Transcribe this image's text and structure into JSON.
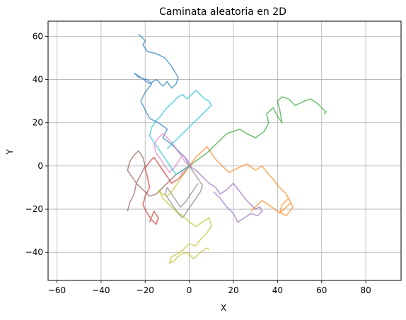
{
  "chart_data": {
    "type": "line",
    "title": "Caminata aleatoria en 2D",
    "xlabel": "X",
    "ylabel": "Y",
    "xlim": [
      -64,
      96
    ],
    "ylim": [
      -53,
      67
    ],
    "xticks": [
      -60,
      -40,
      -20,
      0,
      20,
      40,
      60,
      80
    ],
    "yticks": [
      -40,
      -20,
      0,
      20,
      40,
      60
    ],
    "grid": true,
    "series": [
      {
        "color": "#1f77b4",
        "x": [
          0,
          -2,
          -5,
          -8,
          -12,
          -10,
          -14,
          -18,
          -20,
          -22,
          -20,
          -17,
          -19,
          -23,
          -25,
          -22,
          -18,
          -15,
          -12,
          -10,
          -8,
          -6,
          -5,
          -8,
          -11,
          -15,
          -19,
          -21,
          -20,
          -22,
          -23
        ],
        "y": [
          0,
          4,
          7,
          10,
          13,
          17,
          20,
          22,
          26,
          30,
          34,
          38,
          40,
          41,
          43,
          41,
          38,
          40,
          37,
          39,
          36,
          38,
          41,
          46,
          50,
          52,
          53,
          56,
          58,
          60,
          61
        ]
      },
      {
        "color": "#ff7f0e",
        "x": [
          0,
          3,
          6,
          8,
          10,
          12,
          15,
          18,
          22,
          26,
          30,
          33,
          36,
          38,
          40,
          42,
          44,
          46,
          43,
          41,
          42,
          45,
          47,
          44,
          40,
          36,
          33,
          30,
          28
        ],
        "y": [
          0,
          4,
          7,
          9,
          6,
          3,
          0,
          -3,
          -1,
          1,
          -2,
          0,
          -4,
          -6,
          -9,
          -11,
          -13,
          -17,
          -20,
          -22,
          -18,
          -15,
          -19,
          -23,
          -21,
          -18,
          -16,
          -19,
          -21
        ]
      },
      {
        "color": "#2ca02c",
        "x": [
          0,
          4,
          8,
          11,
          14,
          17,
          20,
          23,
          26,
          30,
          34,
          36,
          35,
          38,
          40,
          42,
          41,
          40,
          42,
          45,
          48,
          52,
          55,
          58,
          60,
          62,
          61
        ],
        "y": [
          0,
          3,
          6,
          9,
          12,
          15,
          16,
          17,
          15,
          13,
          16,
          20,
          24,
          27,
          23,
          20,
          26,
          30,
          32,
          31,
          28,
          30,
          31,
          29,
          27,
          25,
          24
        ]
      },
      {
        "color": "#d62728",
        "x": [
          0,
          -2,
          -5,
          -8,
          -10,
          -12,
          -14,
          -16,
          -18,
          -20,
          -19,
          -18,
          -20,
          -21,
          -19,
          -17,
          -15,
          -14,
          -16,
          -18
        ],
        "y": [
          0,
          -3,
          -6,
          -8,
          -5,
          -2,
          1,
          4,
          2,
          -1,
          -5,
          -10,
          -14,
          -18,
          -22,
          -25,
          -27,
          -24,
          -21,
          -26
        ]
      },
      {
        "color": "#9467bd",
        "x": [
          0,
          3,
          6,
          9,
          12,
          14,
          17,
          20,
          23,
          26,
          28,
          30,
          32,
          33,
          31,
          28,
          25,
          22,
          20,
          17,
          14,
          11
        ],
        "y": [
          0,
          -2,
          -5,
          -8,
          -10,
          -13,
          -11,
          -8,
          -12,
          -16,
          -18,
          -20,
          -19,
          -21,
          -23,
          -22,
          -24,
          -26,
          -22,
          -19,
          -15,
          -12
        ]
      },
      {
        "color": "#8c564b",
        "x": [
          0,
          -3,
          -6,
          -9,
          -12,
          -15,
          -18,
          -20,
          -22,
          -24,
          -26,
          -28,
          -27,
          -25,
          -23,
          -21,
          -20,
          -22,
          -24,
          -25,
          -27,
          -28
        ],
        "y": [
          0,
          -2,
          -4,
          -7,
          -10,
          -13,
          -14,
          -12,
          -10,
          -8,
          -5,
          -2,
          2,
          5,
          7,
          4,
          0,
          -4,
          -8,
          -13,
          -17,
          -21
        ]
      },
      {
        "color": "#e377c2",
        "x": [
          0,
          -2,
          -4,
          -6,
          -8,
          -10,
          -12,
          -14,
          -16,
          -15,
          -13,
          -11,
          -9,
          -7,
          -5,
          -3,
          -1,
          1,
          -2,
          -4
        ],
        "y": [
          0,
          2,
          5,
          8,
          11,
          13,
          15,
          13,
          10,
          6,
          3,
          0,
          -3,
          -1,
          2,
          5,
          3,
          0,
          -2,
          -4
        ]
      },
      {
        "color": "#7f7f7f",
        "x": [
          0,
          2,
          4,
          6,
          5,
          3,
          1,
          -1,
          -3,
          -5,
          -7,
          -9,
          -11,
          -10,
          -8,
          -6,
          -4,
          -2,
          0,
          2,
          4
        ],
        "y": [
          0,
          -3,
          -6,
          -9,
          -12,
          -15,
          -18,
          -21,
          -24,
          -22,
          -19,
          -16,
          -13,
          -10,
          -13,
          -16,
          -19,
          -17,
          -14,
          -11,
          -8
        ]
      },
      {
        "color": "#bcbd22",
        "x": [
          0,
          -2,
          -4,
          -6,
          -8,
          -10,
          -12,
          -14,
          -12,
          -9,
          -6,
          -3,
          0,
          3,
          6,
          9,
          10,
          8,
          5,
          3,
          0,
          -3,
          -6,
          -8,
          -9,
          -7,
          -4,
          -1,
          2,
          5,
          8,
          9
        ],
        "y": [
          0,
          -3,
          -6,
          -9,
          -12,
          -14,
          -13,
          -11,
          -15,
          -18,
          -21,
          -23,
          -26,
          -28,
          -26,
          -24,
          -28,
          -31,
          -34,
          -37,
          -36,
          -39,
          -41,
          -42,
          -45,
          -44,
          -41,
          -40,
          -43,
          -40,
          -38,
          -39
        ]
      },
      {
        "color": "#17becf",
        "x": [
          0,
          -3,
          -6,
          -8,
          -10,
          -12,
          -14,
          -16,
          -18,
          -17,
          -15,
          -13,
          -11,
          -9,
          -7,
          -5,
          -3,
          -1,
          1,
          3,
          5,
          7,
          9,
          10,
          8,
          6,
          4,
          2,
          0,
          -2,
          -4,
          -6,
          -8,
          -10
        ],
        "y": [
          0,
          -2,
          -4,
          -1,
          2,
          5,
          8,
          11,
          14,
          18,
          21,
          23,
          26,
          28,
          30,
          32,
          33,
          31,
          33,
          35,
          33,
          31,
          30,
          28,
          26,
          24,
          22,
          20,
          18,
          16,
          14,
          12,
          10,
          8
        ]
      }
    ]
  }
}
